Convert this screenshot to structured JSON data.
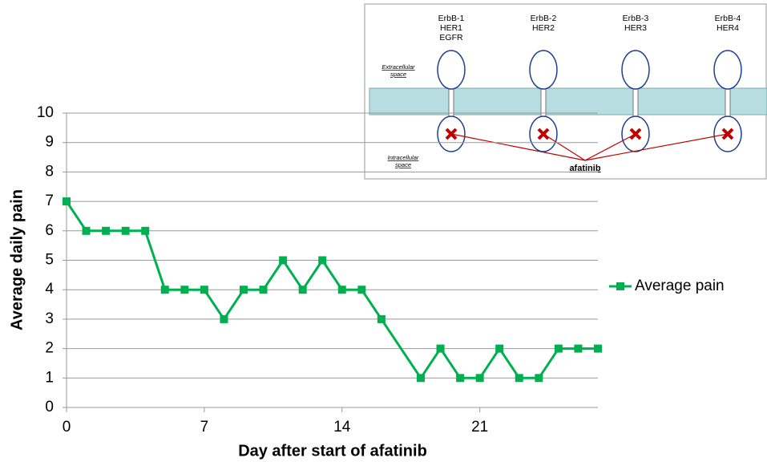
{
  "chart_data": {
    "type": "line",
    "x_label": "Day after start of afatinib",
    "y_label": "Average daily pain",
    "x": [
      0,
      1,
      2,
      3,
      4,
      5,
      6,
      7,
      8,
      9,
      10,
      11,
      12,
      13,
      14,
      15,
      16,
      18,
      19,
      20,
      21,
      22,
      23,
      24,
      25,
      26,
      27
    ],
    "series": [
      {
        "name": "Average pain",
        "color": "#00b050",
        "values": [
          7,
          6,
          6,
          6,
          6,
          4,
          4,
          4,
          3,
          4,
          4,
          5,
          4,
          5,
          4,
          4,
          3,
          1,
          2,
          1,
          1,
          2,
          1,
          1,
          2,
          2,
          2
        ]
      }
    ],
    "xlim": [
      0,
      27
    ],
    "xticks": [
      0,
      7,
      14,
      21
    ],
    "ylim": [
      0,
      10
    ],
    "yticks": [
      0,
      1,
      2,
      3,
      4,
      5,
      6,
      7,
      8,
      9,
      10
    ],
    "grid": true,
    "legend": "right"
  },
  "inset": {
    "receptors": [
      [
        "ErbB-1",
        "HER1",
        "EGFR"
      ],
      [
        "ErbB-2",
        "HER2"
      ],
      [
        "ErbB-3",
        "HER3"
      ],
      [
        "ErbB-4",
        "HER4"
      ]
    ],
    "extracellular": [
      "Extracellular",
      "space"
    ],
    "intracellular": [
      "Intracellular",
      "space"
    ],
    "drug": "afatinib"
  }
}
